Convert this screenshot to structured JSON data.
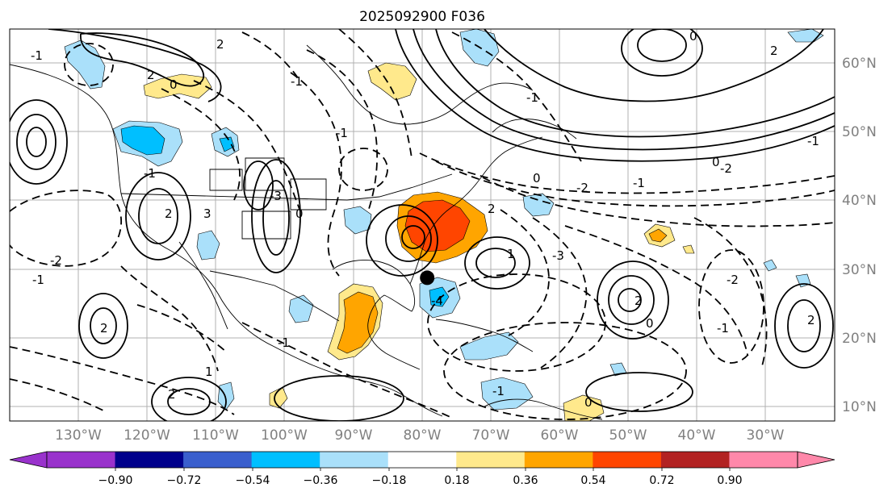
{
  "title": "2025092900 F036",
  "map": {
    "lon_labels": [
      "130°W",
      "120°W",
      "110°W",
      "100°W",
      "90°W",
      "80°W",
      "70°W",
      "60°W",
      "50°W",
      "40°W",
      "30°W"
    ],
    "lat_labels": [
      "60°N",
      "50°N",
      "40°N",
      "30°N",
      "20°N",
      "10°N"
    ],
    "marker": {
      "lon": -79.3,
      "lat": 28.1,
      "color": "#000000"
    },
    "contour_labels": [
      "-1",
      "2",
      "0",
      "-2",
      "-1",
      "-1",
      "2",
      "-3",
      "-1",
      "0",
      "-1",
      "2",
      "-2",
      "-1",
      "1",
      "2",
      "0",
      "-3",
      "-1",
      "2",
      "3",
      "1",
      "2",
      "-4",
      "0",
      "0",
      "-1",
      "-2",
      "2",
      "0",
      "2",
      "-1",
      "2",
      "0",
      "-1",
      "-2",
      "-1"
    ]
  },
  "colorbar": {
    "ticks": [
      "−0.90",
      "−0.72",
      "−0.54",
      "−0.36",
      "−0.18",
      "0.18",
      "0.36",
      "0.54",
      "0.72",
      "0.90"
    ],
    "colors": [
      "#9932cc",
      "#00008b",
      "#3a5fcd",
      "#00bfff",
      "#aae0fa",
      "#ffffff",
      "#ffe98c",
      "#ffa500",
      "#ff4500",
      "#b22222",
      "#ff88aa"
    ],
    "under_color": "#9932cc",
    "over_color": "#ff88aa"
  }
}
